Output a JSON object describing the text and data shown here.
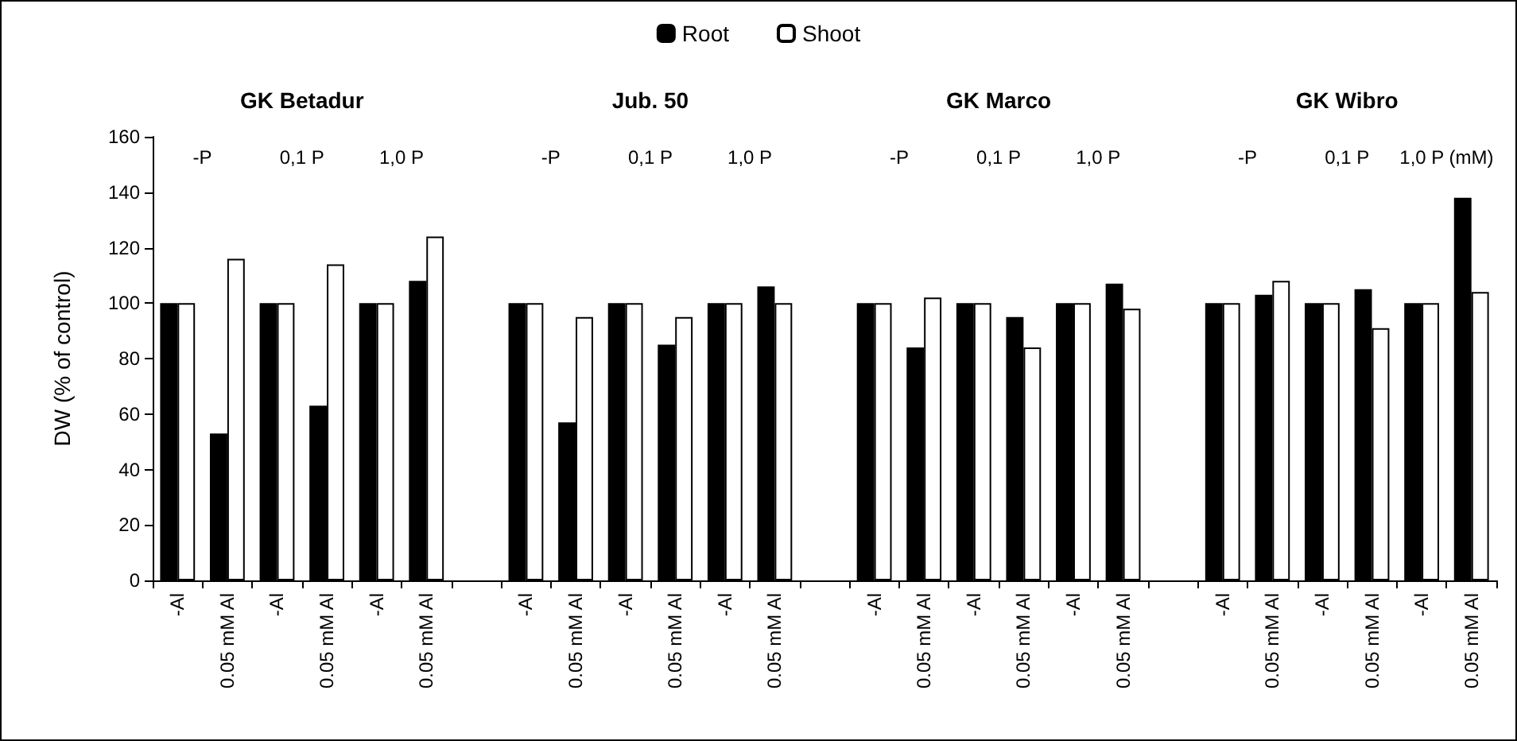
{
  "chart_data": {
    "type": "bar",
    "ylabel": "DW (% of control)",
    "categories": [
      "-Al",
      "0.05 mM Al",
      "-Al",
      "0.05 mM Al",
      "-Al",
      "0.05 mM Al",
      null,
      "-Al",
      "0.05 mM Al",
      "-Al",
      "0.05 mM Al",
      "-Al",
      "0.05 mM Al",
      null,
      "-Al",
      "0.05 mM Al",
      "-Al",
      "0.05 mM Al",
      "-Al",
      "0.05 mM Al",
      null,
      "-Al",
      "0.05 mM Al",
      "-Al",
      "0.05 mM Al",
      "-Al",
      "0.05 mM Al"
    ],
    "series": [
      {
        "name": "Root",
        "color": "#000000",
        "values": [
          100,
          53,
          100,
          63,
          100,
          108,
          null,
          100,
          57,
          100,
          85,
          100,
          106,
          null,
          100,
          84,
          100,
          95,
          100,
          107,
          null,
          100,
          103,
          100,
          105,
          100,
          138
        ]
      },
      {
        "name": "Shoot",
        "color": "#ffffff",
        "values": [
          100,
          116,
          100,
          114,
          100,
          124,
          null,
          100,
          95,
          100,
          95,
          100,
          100,
          null,
          100,
          102,
          100,
          84,
          100,
          98,
          null,
          100,
          108,
          100,
          91,
          100,
          104
        ]
      }
    ],
    "annotations": [
      "GK Betadur",
      "Jub. 50",
      "GK Marco",
      "GK Wibro",
      "-P",
      "0,1 P",
      "1,0 P",
      "-P",
      "0,1 P",
      "1,0 P",
      "-P",
      "0,1 P",
      "1,0 P",
      "-P",
      "0,1 P",
      "1,0 P (mM)"
    ],
    "ylim": [
      0,
      160
    ],
    "yticks": [
      0,
      20,
      40,
      60,
      80,
      100,
      120,
      140,
      160
    ],
    "grid": false,
    "legend": "top"
  }
}
